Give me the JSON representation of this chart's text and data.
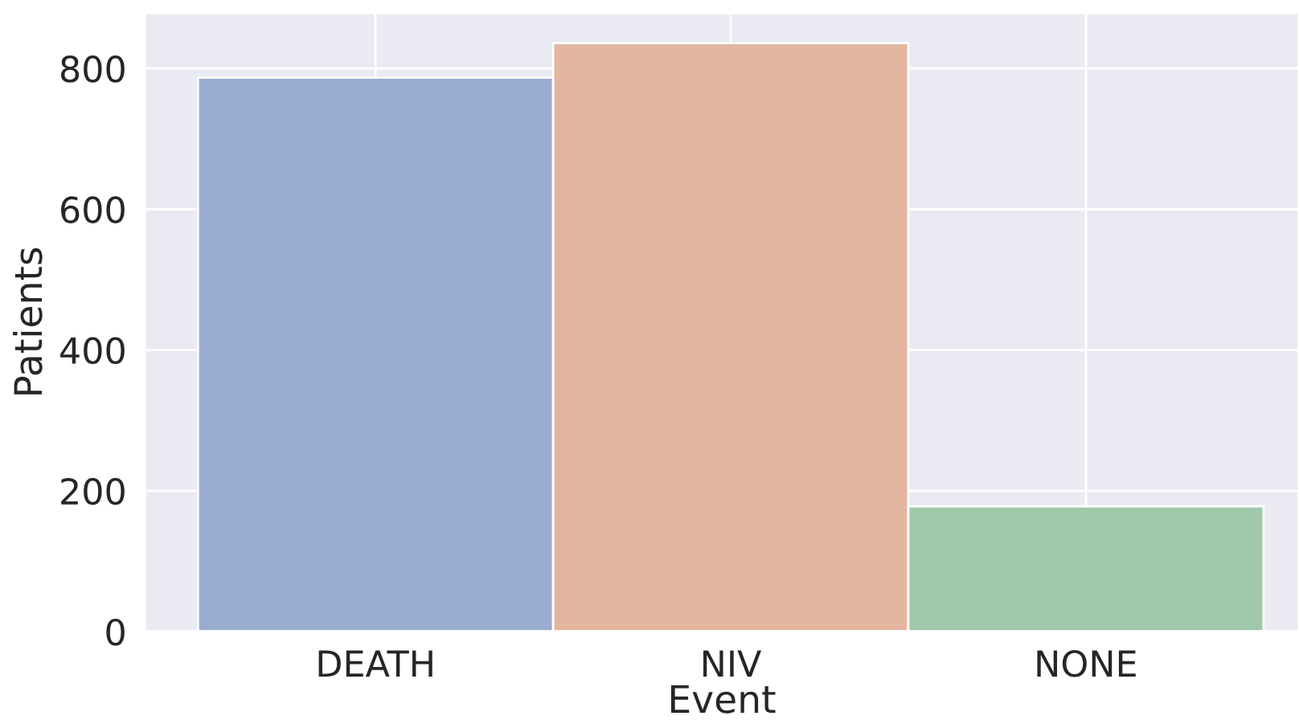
{
  "chart_data": {
    "type": "bar",
    "xlabel": "Event",
    "ylabel": "Patients",
    "categories": [
      "DEATH",
      "NIV",
      "NONE"
    ],
    "values": [
      787,
      836,
      178
    ],
    "colors": [
      "#9aadd1",
      "#e3b6a0",
      "#a0c8aa"
    ],
    "ylim": [
      0,
      879
    ],
    "yticks": [
      0,
      200,
      400,
      600,
      800
    ],
    "grid": true
  }
}
